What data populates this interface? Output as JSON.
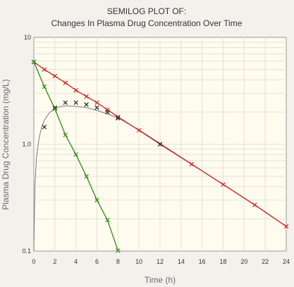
{
  "chart_data": {
    "type": "scatter",
    "title": "SEMILOG PLOT OF:",
    "subtitle": "Changes In Plasma Drug Concentration Over Time",
    "xlabel": "Time (h)",
    "ylabel": "Plasma Drug Concentration (mg/L)",
    "x_scale": "linear",
    "y_scale": "log",
    "xlim": [
      0,
      24
    ],
    "ylim": [
      0.1,
      10
    ],
    "x_ticks": [
      "0",
      "2",
      "4",
      "6",
      "8",
      "10",
      "12",
      "14",
      "16",
      "18",
      "20",
      "22",
      "24"
    ],
    "y_ticks": [
      "0.1",
      "1.0",
      "10"
    ],
    "grid": true,
    "series": [
      {
        "color": "#d11d1d",
        "marker": "x",
        "connected": true,
        "x": [
          0,
          1,
          2,
          3,
          4,
          5,
          6,
          7,
          8,
          10,
          12,
          15,
          18,
          21,
          24
        ],
        "y": [
          5.9,
          5.0,
          4.35,
          3.75,
          3.2,
          2.8,
          2.45,
          2.1,
          1.8,
          1.35,
          1.0,
          0.65,
          0.42,
          0.27,
          0.17
        ]
      },
      {
        "color": "#222222",
        "marker": "x",
        "connected": false,
        "x": [
          0,
          1,
          2,
          3,
          4,
          5,
          6,
          7,
          8,
          12
        ],
        "y": [
          5.9,
          1.45,
          2.2,
          2.45,
          2.45,
          2.35,
          2.2,
          2.0,
          1.75,
          1.0
        ]
      },
      {
        "color": "#2e8b11",
        "marker": "x",
        "connected": true,
        "x": [
          0,
          1,
          2,
          3,
          4,
          5,
          6,
          7,
          8
        ],
        "y": [
          5.9,
          3.45,
          2.15,
          1.22,
          0.8,
          0.5,
          0.3,
          0.195,
          0.101
        ]
      },
      {
        "color": "#7a7a7a",
        "marker": "none",
        "connected": true,
        "x": [
          0,
          0.1,
          0.25,
          0.5,
          0.75,
          1,
          1.5,
          2,
          2.5,
          3,
          3.5,
          4,
          5,
          6,
          7,
          8,
          10,
          12,
          15,
          18,
          21,
          24
        ],
        "y": [
          0.1,
          0.4,
          0.75,
          1.15,
          1.45,
          1.68,
          1.98,
          2.15,
          2.25,
          2.28,
          2.28,
          2.26,
          2.2,
          2.07,
          1.92,
          1.77,
          1.36,
          1.02,
          0.65,
          0.42,
          0.27,
          0.17
        ]
      }
    ]
  }
}
